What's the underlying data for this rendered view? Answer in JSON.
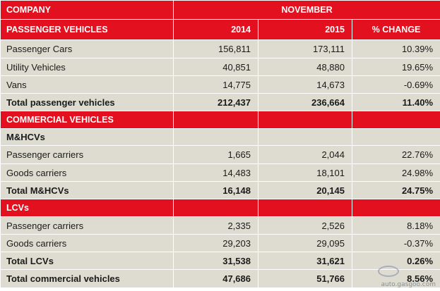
{
  "header": {
    "company_label": "COMPANY",
    "month_label": "NOVEMBER"
  },
  "passenger_section": {
    "title": "PASSENGER VEHICLES",
    "col_2014": "2014",
    "col_2015": "2015",
    "col_change": "% CHANGE",
    "rows": [
      {
        "label": "Passenger Cars",
        "y2014": "156,811",
        "y2015": "173,111",
        "change": "10.39%"
      },
      {
        "label": "Utility Vehicles",
        "y2014": "40,851",
        "y2015": "48,880",
        "change": "19.65%"
      },
      {
        "label": "Vans",
        "y2014": "14,775",
        "y2015": "14,673",
        "change": "-0.69%"
      }
    ],
    "total": {
      "label": "Total passenger vehicles",
      "y2014": "212,437",
      "y2015": "236,664",
      "change": "11.40%"
    }
  },
  "commercial_section": {
    "title": "COMMERCIAL VEHICLES",
    "mhcv": {
      "title": "M&HCVs",
      "rows": [
        {
          "label": "Passenger carriers",
          "y2014": "1,665",
          "y2015": "2,044",
          "change": "22.76%"
        },
        {
          "label": "Goods carriers",
          "y2014": "14,483",
          "y2015": "18,101",
          "change": "24.98%"
        }
      ],
      "total": {
        "label": "Total M&HCVs",
        "y2014": "16,148",
        "y2015": "20,145",
        "change": "24.75%"
      }
    },
    "lcv": {
      "title": "LCVs",
      "rows": [
        {
          "label": "Passenger carriers",
          "y2014": "2,335",
          "y2015": "2,526",
          "change": "8.18%"
        },
        {
          "label": "Goods carriers",
          "y2014": "29,203",
          "y2015": "29,095",
          "change": "-0.37%"
        }
      ],
      "total": {
        "label": "Total LCVs",
        "y2014": "31,538",
        "y2015": "31,621",
        "change": "0.26%"
      }
    },
    "grand_total": {
      "label": "Total commercial vehicles",
      "y2014": "47,686",
      "y2015": "51,766",
      "change": "8.56%"
    }
  },
  "watermark": {
    "text": "auto.gasgoo.com"
  }
}
